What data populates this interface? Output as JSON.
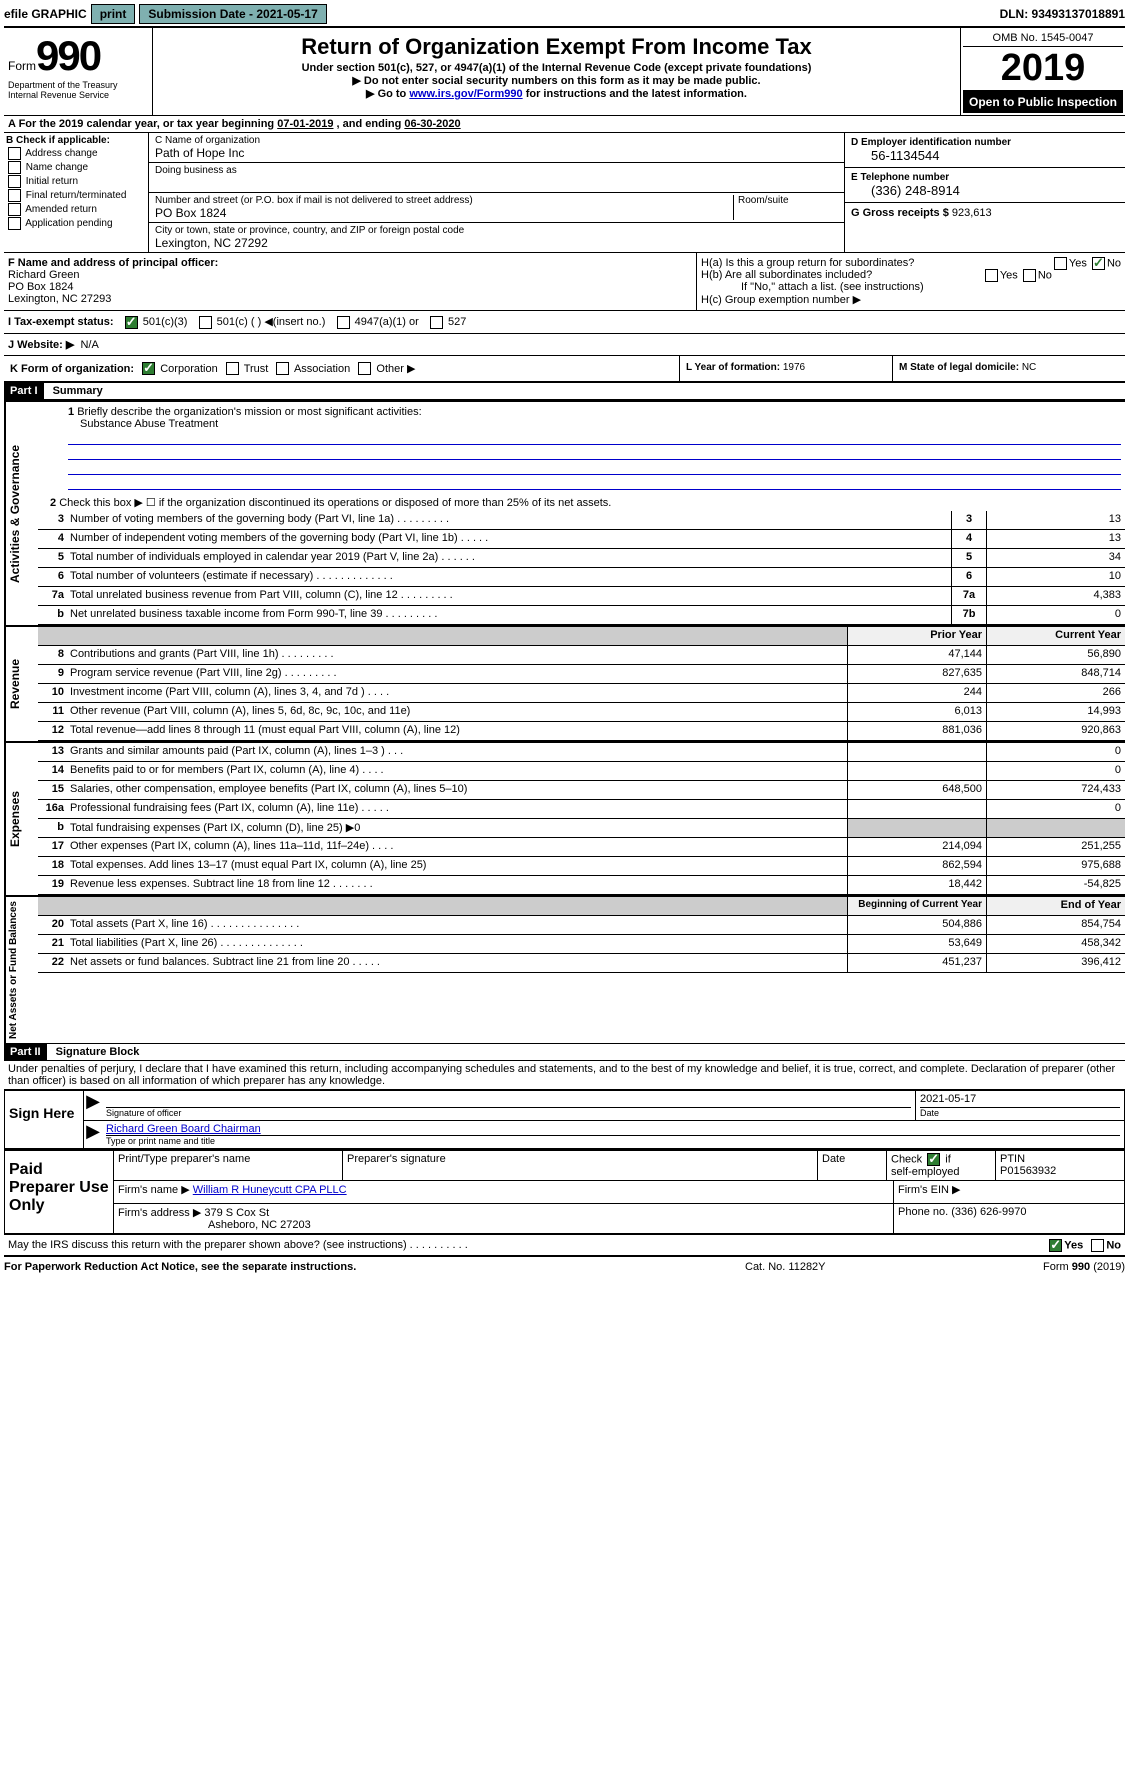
{
  "top_bar": {
    "efile": "efile GRAPHIC",
    "print": "print",
    "sub_date_label": "Submission Date - 2021-05-17",
    "dln": "DLN: 93493137018891"
  },
  "header": {
    "form_word": "Form",
    "form_num": "990",
    "title": "Return of Organization Exempt From Income Tax",
    "subtitle": "Under section 501(c), 527, or 4947(a)(1) of the Internal Revenue Code (except private foundations)",
    "note1": "▶ Do not enter social security numbers on this form as it may be made public.",
    "note2_pre": "▶ Go to ",
    "note2_link": "www.irs.gov/Form990",
    "note2_post": " for instructions and the latest information.",
    "omb": "OMB No. 1545-0047",
    "year": "2019",
    "open_public": "Open to Public Inspection",
    "dept": "Department of the Treasury\nInternal Revenue Service"
  },
  "period": {
    "label_a": "A For the 2019 calendar year, or tax year beginning ",
    "start": "07-01-2019",
    "mid": " , and ending ",
    "end": "06-30-2020"
  },
  "section_b": {
    "label": "B Check if applicable:",
    "checks": [
      "Address change",
      "Name change",
      "Initial return",
      "Final return/terminated",
      "Amended return",
      "Application pending"
    ]
  },
  "section_c": {
    "name_label": "C Name of organization",
    "name": "Path of Hope Inc",
    "dba_label": "Doing business as",
    "addr_label": "Number and street (or P.O. box if mail is not delivered to street address)",
    "room_label": "Room/suite",
    "addr": "PO Box 1824",
    "city_label": "City or town, state or province, country, and ZIP or foreign postal code",
    "city": "Lexington, NC  27292"
  },
  "section_d": {
    "label": "D Employer identification number",
    "ein": "56-1134544"
  },
  "section_e": {
    "label": "E Telephone number",
    "phone": "(336) 248-8914"
  },
  "section_g": {
    "label": "G Gross receipts $ ",
    "val": "923,613"
  },
  "section_f": {
    "label": "F  Name and address of principal officer:",
    "name": "Richard Green",
    "addr1": "PO Box 1824",
    "addr2": "Lexington, NC  27293"
  },
  "section_h": {
    "ha": "H(a)  Is this a group return for subordinates?",
    "hb": "H(b)  Are all subordinates included?",
    "hb_note": "If \"No,\" attach a list. (see instructions)",
    "hc": "H(c)  Group exemption number ▶"
  },
  "section_i": {
    "label": "I   Tax-exempt status:",
    "opts": [
      "501(c)(3)",
      "501(c) (   ) ◀(insert no.)",
      "4947(a)(1) or",
      "527"
    ]
  },
  "section_j": {
    "label": "J   Website: ▶",
    "val": "N/A"
  },
  "section_k": {
    "label": "K Form of organization:",
    "opts": [
      "Corporation",
      "Trust",
      "Association",
      "Other ▶"
    ]
  },
  "section_l": {
    "label": "L Year of formation: ",
    "val": "1976"
  },
  "section_m": {
    "label": "M State of legal domicile: ",
    "val": "NC"
  },
  "part1": {
    "bar": "Part I",
    "title": "Summary",
    "line1": "Briefly describe the organization's mission or most significant activities:",
    "mission": "Substance Abuse Treatment",
    "line2": "Check this box ▶ ☐  if the organization discontinued its operations or disposed of more than 25% of its net assets."
  },
  "side_labels": {
    "ag": "Activities & Governance",
    "rev": "Revenue",
    "exp": "Expenses",
    "na": "Net Assets or Fund Balances"
  },
  "lines_ag": [
    {
      "n": "3",
      "d": "Number of voting members of the governing body (Part VI, line 1a)   .    .    .    .    .    .    .    .    .",
      "b": "3",
      "v": "13"
    },
    {
      "n": "4",
      "d": "Number of independent voting members of the governing body (Part VI, line 1b)    .    .    .    .    .",
      "b": "4",
      "v": "13"
    },
    {
      "n": "5",
      "d": "Total number of individuals employed in calendar year 2019 (Part V, line 2a)    .    .    .    .    .    .",
      "b": "5",
      "v": "34"
    },
    {
      "n": "6",
      "d": "Total number of volunteers (estimate if necessary)    .    .    .    .    .    .    .    .    .    .    .    .    .",
      "b": "6",
      "v": "10"
    },
    {
      "n": "7a",
      "d": "Total unrelated business revenue from Part VIII, column (C), line 12   .    .    .    .    .    .    .    .    .",
      "b": "7a",
      "v": "4,383"
    },
    {
      "n": "  b",
      "d": "Net unrelated business taxable income from Form 990-T, line 39    .    .    .    .    .    .    .    .    .",
      "b": "7b",
      "v": "0"
    }
  ],
  "col_headers": {
    "prior": "Prior Year",
    "current": "Current Year",
    "begin": "Beginning of Current Year",
    "end": "End of Year"
  },
  "lines_rev": [
    {
      "n": "8",
      "d": "Contributions and grants (Part VIII, line 1h)   .    .    .    .    .    .    .    .    .",
      "p": "47,144",
      "c": "56,890"
    },
    {
      "n": "9",
      "d": "Program service revenue (Part VIII, line 2g)   .    .    .    .    .    .    .    .    .",
      "p": "827,635",
      "c": "848,714"
    },
    {
      "n": "10",
      "d": "Investment income (Part VIII, column (A), lines 3, 4, and 7d )   .    .    .    .",
      "p": "244",
      "c": "266"
    },
    {
      "n": "11",
      "d": "Other revenue (Part VIII, column (A), lines 5, 6d, 8c, 9c, 10c, and 11e)",
      "p": "6,013",
      "c": "14,993"
    },
    {
      "n": "12",
      "d": "Total revenue—add lines 8 through 11 (must equal Part VIII, column (A), line 12)",
      "p": "881,036",
      "c": "920,863"
    }
  ],
  "lines_exp": [
    {
      "n": "13",
      "d": "Grants and similar amounts paid (Part IX, column (A), lines 1–3 )   .    .    .",
      "p": "",
      "c": "0"
    },
    {
      "n": "14",
      "d": "Benefits paid to or for members (Part IX, column (A), line 4)   .    .    .    .",
      "p": "",
      "c": "0"
    },
    {
      "n": "15",
      "d": "Salaries, other compensation, employee benefits (Part IX, column (A), lines 5–10)",
      "p": "648,500",
      "c": "724,433"
    },
    {
      "n": "16a",
      "d": "Professional fundraising fees (Part IX, column (A), line 11e)   .    .    .    .    .",
      "p": "",
      "c": "0"
    },
    {
      "n": "  b",
      "d": "Total fundraising expenses (Part IX, column (D), line 25) ▶0",
      "p": "",
      "c": ""
    },
    {
      "n": "17",
      "d": "Other expenses (Part IX, column (A), lines 11a–11d, 11f–24e)   .    .    .    .",
      "p": "214,094",
      "c": "251,255"
    },
    {
      "n": "18",
      "d": "Total expenses. Add lines 13–17 (must equal Part IX, column (A), line 25)",
      "p": "862,594",
      "c": "975,688"
    },
    {
      "n": "19",
      "d": "Revenue less expenses. Subtract line 18 from line 12   .    .    .    .    .    .    .",
      "p": "18,442",
      "c": "-54,825"
    }
  ],
  "lines_na": [
    {
      "n": "20",
      "d": "Total assets (Part X, line 16)   .    .    .    .    .    .    .    .    .    .    .    .    .    .    .",
      "p": "504,886",
      "c": "854,754"
    },
    {
      "n": "21",
      "d": "Total liabilities (Part X, line 26)   .    .    .    .    .    .    .    .    .    .    .    .    .    .",
      "p": "53,649",
      "c": "458,342"
    },
    {
      "n": "22",
      "d": "Net assets or fund balances. Subtract line 21 from line 20   .    .    .    .    .",
      "p": "451,237",
      "c": "396,412"
    }
  ],
  "part2": {
    "bar": "Part II",
    "title": "Signature Block",
    "perjury": "Under penalties of perjury, I declare that I have examined this return, including accompanying schedules and statements, and to the best of my knowledge and belief, it is true, correct, and complete. Declaration of preparer (other than officer) is based on all information of which preparer has any knowledge."
  },
  "sign": {
    "label": "Sign Here",
    "sig_label": "Signature of officer",
    "date": "2021-05-17",
    "date_label": "Date",
    "name": "Richard Green  Board Chairman",
    "name_label": "Type or print name and title"
  },
  "prep": {
    "label": "Paid Preparer Use Only",
    "col1": "Print/Type preparer's name",
    "col2": "Preparer's signature",
    "col3": "Date",
    "col4_label": "Check ☑ if self-employed",
    "col5_label": "PTIN",
    "ptin": "P01563932",
    "firm_name_label": "Firm's name     ▶",
    "firm_name": "William R Huneycutt CPA PLLC",
    "firm_ein_label": "Firm's EIN ▶",
    "firm_addr_label": "Firm's address ▶",
    "firm_addr1": "379 S Cox St",
    "firm_addr2": "Asheboro, NC  27203",
    "phone_label": "Phone no. ",
    "phone": "(336) 626-9970"
  },
  "discuss": "May the IRS discuss this return with the preparer shown above? (see instructions)    .    .    .    .    .    .    .    .    .    .",
  "footer": {
    "left": "For Paperwork Reduction Act Notice, see the separate instructions.",
    "center": "Cat. No. 11282Y",
    "right": "Form 990 (2019)"
  }
}
